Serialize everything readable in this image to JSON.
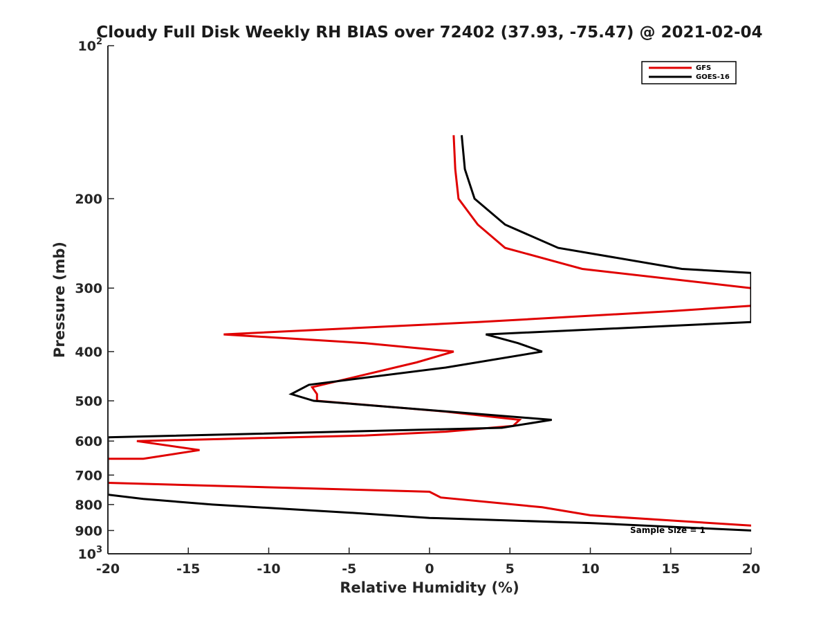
{
  "chart_data": {
    "type": "line",
    "title": "Cloudy Full Disk Weekly RH BIAS over 72402 (37.93, -75.47) @ 2021-02-04",
    "xlabel": "Relative Humidity (%)",
    "ylabel": "Pressure (mb)",
    "xlim": [
      -20,
      20
    ],
    "ylim": [
      100,
      1000
    ],
    "y_scale": "log",
    "y_reversed": true,
    "x_ticks": [
      "-20",
      "-15",
      "-10",
      "-5",
      "0",
      "5",
      "10",
      "15",
      "20"
    ],
    "x_tick_values": [
      -20,
      -15,
      -10,
      -5,
      0,
      5,
      10,
      15,
      20
    ],
    "y_tick_values": [
      100,
      200,
      300,
      400,
      500,
      600,
      700,
      800,
      900,
      1000
    ],
    "y_ticks": [
      {
        "base": "10",
        "exp": "2"
      },
      {
        "base": "200",
        "exp": ""
      },
      {
        "base": "300",
        "exp": ""
      },
      {
        "base": "400",
        "exp": ""
      },
      {
        "base": "500",
        "exp": ""
      },
      {
        "base": "600",
        "exp": ""
      },
      {
        "base": "700",
        "exp": ""
      },
      {
        "base": "800",
        "exp": ""
      },
      {
        "base": "900",
        "exp": ""
      },
      {
        "base": "10",
        "exp": "3"
      }
    ],
    "legend_position": "top-right",
    "annotation": "Sample Size = 1",
    "series": [
      {
        "name": "GFS",
        "color": "#e00000",
        "points": [
          [
            1.5,
            150
          ],
          [
            1.6,
            175
          ],
          [
            1.8,
            200
          ],
          [
            3.0,
            225
          ],
          [
            4.7,
            250
          ],
          [
            9.5,
            275
          ],
          [
            20,
            300
          ],
          [
            20,
            325
          ],
          [
            15,
            333
          ],
          [
            3,
            350
          ],
          [
            -12.8,
            370
          ],
          [
            -4,
            385
          ],
          [
            1.5,
            400
          ],
          [
            -0.8,
            420
          ],
          [
            -7.3,
            470
          ],
          [
            -7.0,
            485
          ],
          [
            -7.0,
            500
          ],
          [
            1.0,
            525
          ],
          [
            5.6,
            545
          ],
          [
            5.2,
            560
          ],
          [
            1.0,
            575
          ],
          [
            -4,
            585
          ],
          [
            -18.2,
            600
          ],
          [
            -14.3,
            625
          ],
          [
            -17.8,
            650
          ],
          [
            -20,
            650
          ],
          [
            -20,
            725
          ],
          [
            0.0,
            755
          ],
          [
            0.7,
            775
          ],
          [
            7,
            810
          ],
          [
            10,
            840
          ],
          [
            15,
            860
          ],
          [
            20,
            880
          ]
        ]
      },
      {
        "name": "GOES-16",
        "color": "#000000",
        "points": [
          [
            2.0,
            150
          ],
          [
            2.2,
            175
          ],
          [
            2.8,
            200
          ],
          [
            4.7,
            225
          ],
          [
            8.0,
            250
          ],
          [
            15.7,
            275
          ],
          [
            20,
            280
          ],
          [
            20,
            350
          ],
          [
            3.5,
            370
          ],
          [
            5.5,
            385
          ],
          [
            7.0,
            400
          ],
          [
            1.0,
            430
          ],
          [
            -7.5,
            465
          ],
          [
            -8.6,
            485
          ],
          [
            -7.2,
            500
          ],
          [
            1.2,
            525
          ],
          [
            7.6,
            545
          ],
          [
            4.5,
            565
          ],
          [
            -20,
            590
          ],
          [
            -20,
            765
          ],
          [
            -17.8,
            780
          ],
          [
            -13.5,
            800
          ],
          [
            -5,
            830
          ],
          [
            0,
            850
          ],
          [
            10,
            870
          ],
          [
            20,
            900
          ]
        ]
      }
    ]
  }
}
